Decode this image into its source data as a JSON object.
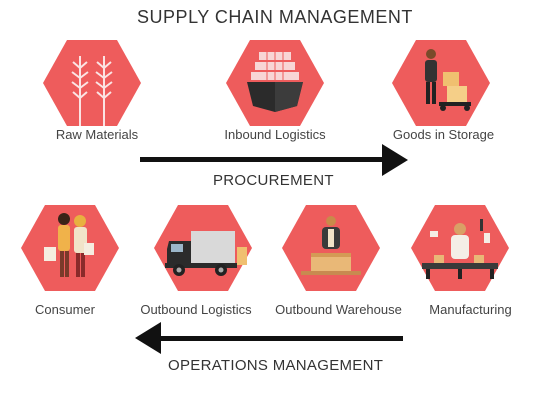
{
  "title": "SUPPLY CHAIN MANAGEMENT",
  "colors": {
    "hex_fill": "#ee5c5c",
    "arrow": "#111111"
  },
  "procurement": {
    "label": "PROCUREMENT",
    "stages": [
      {
        "label": "Raw Materials",
        "icon": "wheat-icon"
      },
      {
        "label": "Inbound Logistics",
        "icon": "cargo-ship-icon"
      },
      {
        "label": "Goods in Storage",
        "icon": "warehouse-worker-icon"
      }
    ]
  },
  "operations": {
    "label": "OPERATIONS MANAGEMENT",
    "stages": [
      {
        "label": "Consumer",
        "icon": "shoppers-icon"
      },
      {
        "label": "Outbound Logistics",
        "icon": "delivery-truck-icon"
      },
      {
        "label": "Outbound Warehouse",
        "icon": "packing-worker-icon"
      },
      {
        "label": "Manufacturing",
        "icon": "factory-worker-icon"
      }
    ]
  }
}
